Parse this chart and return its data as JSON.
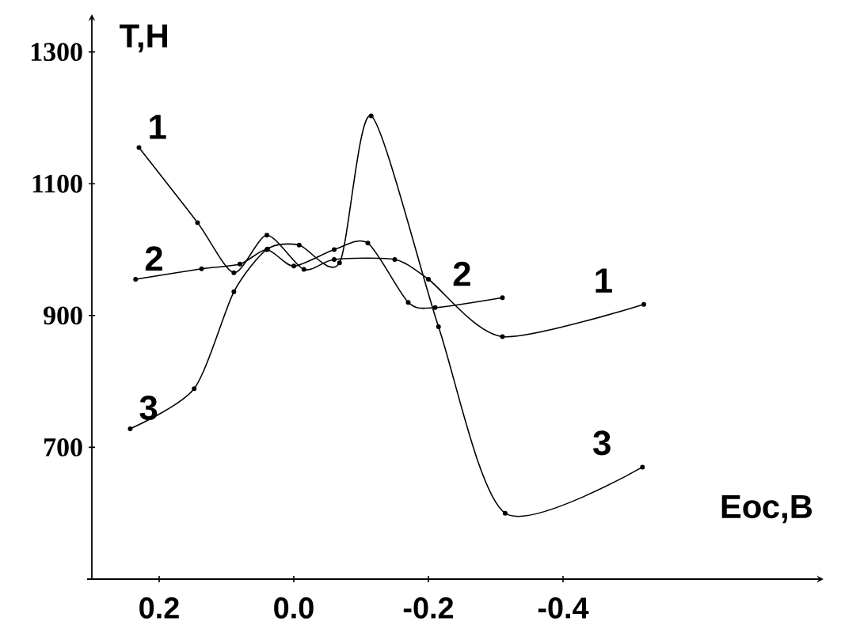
{
  "chart_data": {
    "type": "line",
    "xlabel": "Еос,В",
    "ylabel": "Т,Н",
    "xlim": [
      0.3,
      -0.78
    ],
    "ylim": [
      500,
      1350
    ],
    "xticks": [
      0.2,
      {
        "value": 0,
        "label": "0.0"
      },
      -0.2,
      -0.4
    ],
    "yticks": [
      700,
      900,
      1100,
      1300
    ],
    "grid": false,
    "legend": false,
    "marker": "circle",
    "line_style": "solid",
    "series": [
      {
        "name": "1",
        "color": "#000000",
        "x": [
          0.23,
          0.143,
          0.089,
          0.04,
          -0.015,
          -0.06,
          -0.15,
          -0.2,
          -0.31,
          -0.52
        ],
        "values": [
          1155,
          1041,
          965,
          1022,
          970,
          985,
          985,
          955,
          868,
          917
        ]
      },
      {
        "name": "2",
        "color": "#000000",
        "x": [
          0.235,
          0.137,
          0.08,
          0.04,
          0.0,
          -0.06,
          -0.11,
          -0.17,
          -0.21,
          -0.31
        ],
        "values": [
          955,
          971,
          978,
          1000,
          975,
          1000,
          1010,
          920,
          912,
          927
        ]
      },
      {
        "name": "3",
        "color": "#000000",
        "x": [
          0.243,
          0.148,
          0.089,
          0.039,
          -0.008,
          -0.068,
          -0.115,
          -0.215,
          -0.314,
          -0.518
        ],
        "values": [
          728,
          789,
          936,
          1001,
          1007,
          980,
          1203,
          883,
          600,
          670
        ]
      }
    ]
  }
}
